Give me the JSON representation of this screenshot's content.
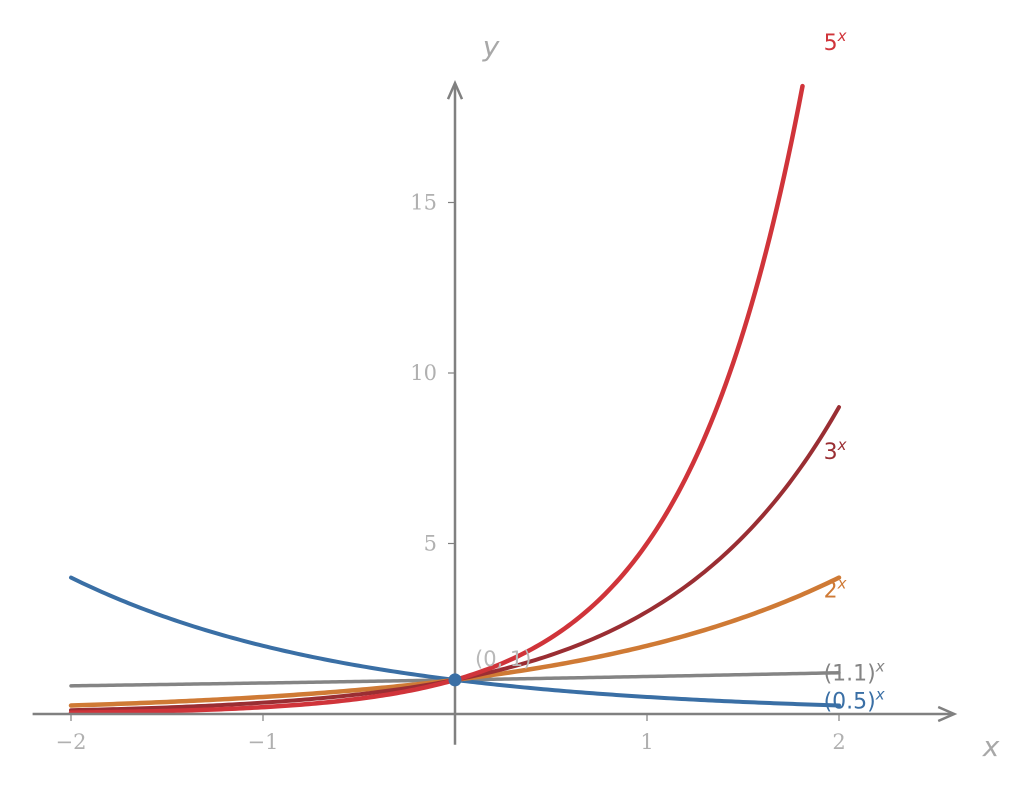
{
  "chart_data": {
    "type": "line",
    "title": "",
    "xlabel": "x",
    "ylabel": "y",
    "xlim": [
      -2.2,
      2.6
    ],
    "ylim": [
      -0.9,
      18.5
    ],
    "x_ticks": [
      -2,
      -1,
      1,
      2
    ],
    "x_tick_labels": [
      "−2",
      "−1",
      "1",
      "2"
    ],
    "y_ticks": [
      5,
      10,
      15
    ],
    "y_tick_labels": [
      "5",
      "10",
      "15"
    ],
    "grid": false,
    "series": [
      {
        "name": "(1.1)",
        "base": 1.1,
        "x_range": [
          -2,
          2
        ],
        "color": "#848484",
        "label_base": "(1.1)",
        "label_exp": "x"
      },
      {
        "name": "(0.5)",
        "base": 0.5,
        "x_range": [
          -2,
          2
        ],
        "color": "#3a6fa5",
        "label_base": "(0.5)",
        "label_exp": "x"
      },
      {
        "name": "2",
        "base": 2,
        "x_range": [
          -2,
          2
        ],
        "color": "#cf7a35",
        "label_base": "2",
        "label_exp": "x"
      },
      {
        "name": "3",
        "base": 3,
        "x_range": [
          -2,
          2
        ],
        "color": "#9a2e33",
        "label_base": "3",
        "label_exp": "x"
      },
      {
        "name": "5",
        "base": 5,
        "x_range": [
          -2,
          1.81
        ],
        "color": "#d0343a",
        "label_base": "5",
        "label_exp": "x"
      }
    ],
    "annotations": [
      {
        "text": "(0, 1)",
        "x": 0,
        "y": 1
      }
    ],
    "point_color": "#3a6fa5"
  }
}
